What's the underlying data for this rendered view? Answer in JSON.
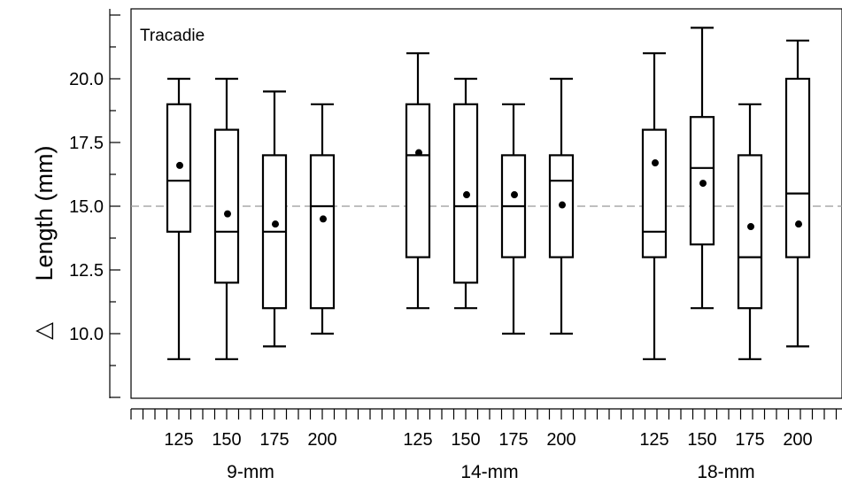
{
  "chart_data": {
    "type": "box",
    "panel_label": "Tracadie",
    "ylabel": "Length (mm)",
    "ylabel_symbol": "△",
    "ylim": [
      7.5,
      23.75
    ],
    "yticks": [
      10.0,
      12.5,
      15.0,
      17.5,
      20.0
    ],
    "ytick_labels": [
      "10.0",
      "12.5",
      "15.0",
      "17.5",
      "20.0"
    ],
    "reference_line": 15.0,
    "groups": [
      {
        "label": "9-mm",
        "boxes": [
          {
            "x": "125",
            "min": 9.0,
            "q1": 14.0,
            "median": 16.0,
            "q3": 19.0,
            "max": 20.0,
            "mean": 16.6
          },
          {
            "x": "150",
            "min": 9.0,
            "q1": 12.0,
            "median": 14.0,
            "q3": 18.0,
            "max": 20.0,
            "mean": 14.7
          },
          {
            "x": "175",
            "min": 9.5,
            "q1": 11.0,
            "median": 14.0,
            "q3": 17.0,
            "max": 19.5,
            "mean": 14.3
          },
          {
            "x": "200",
            "min": 10.0,
            "q1": 11.0,
            "median": 15.0,
            "q3": 17.0,
            "max": 19.0,
            "mean": 14.5
          }
        ]
      },
      {
        "label": "14-mm",
        "boxes": [
          {
            "x": "125",
            "min": 11.0,
            "q1": 13.0,
            "median": 17.0,
            "q3": 19.0,
            "max": 21.0,
            "mean": 17.1
          },
          {
            "x": "150",
            "min": 11.0,
            "q1": 12.0,
            "median": 15.0,
            "q3": 19.0,
            "max": 20.0,
            "mean": 15.45
          },
          {
            "x": "175",
            "min": 10.0,
            "q1": 13.0,
            "median": 15.0,
            "q3": 17.0,
            "max": 19.0,
            "mean": 15.45
          },
          {
            "x": "200",
            "min": 10.0,
            "q1": 13.0,
            "median": 16.0,
            "q3": 17.0,
            "max": 20.0,
            "mean": 15.05
          }
        ]
      },
      {
        "label": "18-mm",
        "boxes": [
          {
            "x": "125",
            "min": 9.0,
            "q1": 13.0,
            "median": 14.0,
            "q3": 18.0,
            "max": 21.0,
            "mean": 16.7
          },
          {
            "x": "150",
            "min": 11.0,
            "q1": 13.5,
            "median": 16.5,
            "q3": 18.5,
            "max": 22.0,
            "mean": 15.9
          },
          {
            "x": "175",
            "min": 9.0,
            "q1": 11.0,
            "median": 13.0,
            "q3": 17.0,
            "max": 19.0,
            "mean": 14.2
          },
          {
            "x": "200",
            "min": 9.5,
            "q1": 13.0,
            "median": 15.5,
            "q3": 20.0,
            "max": 21.5,
            "mean": 14.3
          }
        ]
      }
    ],
    "grid": false,
    "legend": "none",
    "colors": {
      "box": "#000000",
      "reference_line": "#999999",
      "background": "#ffffff"
    }
  }
}
